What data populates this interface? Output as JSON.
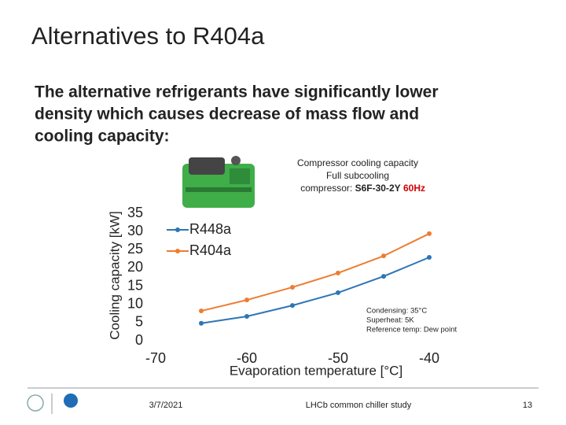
{
  "slide": {
    "title": "Alternatives to R404a",
    "body": [
      "The alternative refrigerants have significantly lower",
      "density which causes decrease of mass flow and",
      "cooling capacity:"
    ],
    "footer": {
      "date": "3/7/2021",
      "center": "LHCb common chiller study",
      "page": "13"
    }
  },
  "chart_data": {
    "type": "line",
    "title_lines": [
      "Compressor cooling capacity",
      "Full subcooling"
    ],
    "compressor_label": "compressor:",
    "compressor_model": "S6F-30-2Y",
    "compressor_freq": "60Hz",
    "x_label": "Evaporation temperature [°C]",
    "y_label": "Cooling capacity [kW]",
    "x": [
      -65,
      -60,
      -55,
      -50,
      -45,
      -40
    ],
    "series": [
      {
        "name": "R448a",
        "color": "#2e75b6",
        "values": [
          4.8,
          6.7,
          9.7,
          13.2,
          17.7,
          22.9
        ]
      },
      {
        "name": "R404a",
        "color": "#ed7d31",
        "values": [
          8.2,
          11.2,
          14.7,
          18.6,
          23.3,
          29.4
        ]
      }
    ],
    "xlim": [
      -70,
      -40
    ],
    "xticks": [
      -70,
      -60,
      -50,
      -40
    ],
    "ylim": [
      0,
      35
    ],
    "yticks": [
      0,
      5,
      10,
      15,
      20,
      25,
      30,
      35
    ],
    "grid": false,
    "legend": "top-left",
    "annotations": [
      "Condensing: 35°C",
      "Superheat: 5K",
      "Reference temp: Dew point"
    ]
  }
}
